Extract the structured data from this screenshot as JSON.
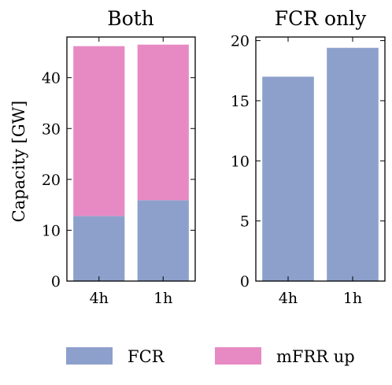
{
  "colors": {
    "fcr": "#8da0cb",
    "mfrr_up": "#e78ac3"
  },
  "y_axis_label": "Capacity [GW]",
  "legend": [
    {
      "key": "fcr",
      "label": "FCR"
    },
    {
      "key": "mfrr_up",
      "label": "mFRR up"
    }
  ],
  "chart_data": [
    {
      "type": "bar",
      "stacked": true,
      "title": "Both",
      "categories": [
        "4h",
        "1h"
      ],
      "series": [
        {
          "name": "FCR",
          "values": [
            12.8,
            15.9
          ]
        },
        {
          "name": "mFRR up",
          "values": [
            33.4,
            30.6
          ]
        }
      ],
      "ylabel": "Capacity [GW]",
      "ylim": [
        0,
        48
      ],
      "yticks": [
        0,
        10,
        20,
        30,
        40
      ],
      "grid": false,
      "legend": "bottom"
    },
    {
      "type": "bar",
      "title": "FCR only",
      "categories": [
        "4h",
        "1h"
      ],
      "series": [
        {
          "name": "FCR",
          "values": [
            17.0,
            19.4
          ]
        }
      ],
      "ylim": [
        0,
        20.3
      ],
      "yticks": [
        0,
        5,
        10,
        15,
        20
      ],
      "grid": false
    }
  ]
}
